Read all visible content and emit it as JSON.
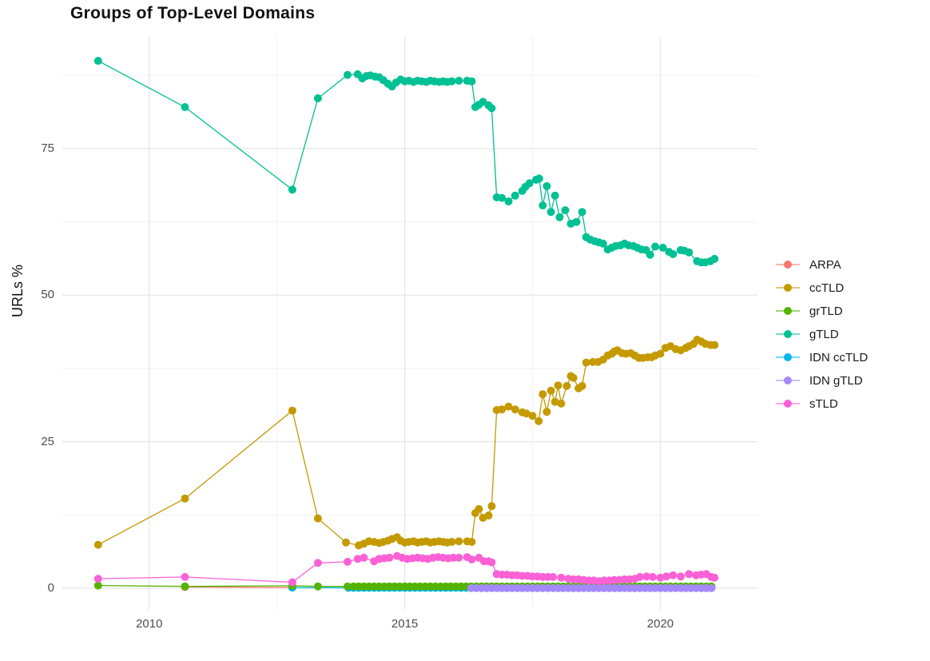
{
  "title": "Groups of Top-Level Domains",
  "y_axis_title": "URLs %",
  "chart_data": {
    "type": "line",
    "marker": "point",
    "xlabel": "",
    "ylabel": "URLs %",
    "xlim": [
      2008.3,
      2021.9
    ],
    "ylim": [
      -3.7,
      94.1
    ],
    "grid": "on",
    "legend_position": "right",
    "x_ticks": [
      {
        "label": "2010",
        "value": 2010
      },
      {
        "label": "2015",
        "value": 2015
      },
      {
        "label": "2020",
        "value": 2020
      }
    ],
    "x_minor": [
      2012.5,
      2017.5
    ],
    "y_ticks": [
      {
        "label": "0",
        "value": 0
      },
      {
        "label": "25",
        "value": 25
      },
      {
        "label": "50",
        "value": 50
      },
      {
        "label": "75",
        "value": 75
      }
    ],
    "y_minor": [
      12.5,
      37.5,
      62.5,
      87.5
    ],
    "series": [
      {
        "name": "ARPA",
        "color": "#F8766D",
        "points": [
          [
            2010.7,
            0.2
          ],
          [
            2012.8,
            0.1
          ]
        ]
      },
      {
        "name": "ccTLD",
        "color": "#C49A00",
        "points": [
          [
            2009.0,
            7.4
          ],
          [
            2010.7,
            15.3
          ],
          [
            2012.8,
            30.3
          ],
          [
            2013.3,
            11.9
          ],
          [
            2013.85,
            7.8
          ],
          [
            2014.1,
            7.3
          ],
          [
            2014.2,
            7.6
          ],
          [
            2014.3,
            8.0
          ],
          [
            2014.4,
            7.9
          ],
          [
            2014.5,
            7.7
          ],
          [
            2014.58,
            7.9
          ],
          [
            2014.67,
            8.1
          ],
          [
            2014.75,
            8.4
          ],
          [
            2014.85,
            8.7
          ],
          [
            2014.92,
            8.1
          ],
          [
            2015.0,
            7.8
          ],
          [
            2015.08,
            7.9
          ],
          [
            2015.17,
            8.0
          ],
          [
            2015.25,
            7.8
          ],
          [
            2015.33,
            7.9
          ],
          [
            2015.42,
            8.0
          ],
          [
            2015.5,
            7.8
          ],
          [
            2015.58,
            7.9
          ],
          [
            2015.67,
            8.0
          ],
          [
            2015.75,
            7.9
          ],
          [
            2015.83,
            7.8
          ],
          [
            2015.92,
            7.9
          ],
          [
            2016.06,
            8.0
          ],
          [
            2016.22,
            8.0
          ],
          [
            2016.31,
            7.9
          ],
          [
            2016.38,
            12.8
          ],
          [
            2016.45,
            13.5
          ],
          [
            2016.53,
            12.0
          ],
          [
            2016.64,
            12.4
          ],
          [
            2016.7,
            14.0
          ],
          [
            2016.8,
            30.4
          ],
          [
            2016.9,
            30.5
          ],
          [
            2017.03,
            31.0
          ],
          [
            2017.16,
            30.5
          ],
          [
            2017.3,
            30.0
          ],
          [
            2017.38,
            29.8
          ],
          [
            2017.5,
            29.4
          ],
          [
            2017.62,
            28.5
          ],
          [
            2017.7,
            33.1
          ],
          [
            2017.78,
            30.1
          ],
          [
            2017.86,
            33.7
          ],
          [
            2017.94,
            31.8
          ],
          [
            2018.0,
            34.6
          ],
          [
            2018.06,
            31.5
          ],
          [
            2018.17,
            34.5
          ],
          [
            2018.25,
            36.2
          ],
          [
            2018.3,
            35.9
          ],
          [
            2018.4,
            34.1
          ],
          [
            2018.47,
            34.5
          ],
          [
            2018.55,
            38.5
          ],
          [
            2018.68,
            38.6
          ],
          [
            2018.78,
            38.6
          ],
          [
            2018.88,
            39.0
          ],
          [
            2018.97,
            39.7
          ],
          [
            2019.05,
            40.0
          ],
          [
            2019.1,
            40.4
          ],
          [
            2019.16,
            40.6
          ],
          [
            2019.25,
            40.1
          ],
          [
            2019.33,
            40.0
          ],
          [
            2019.42,
            40.1
          ],
          [
            2019.5,
            39.7
          ],
          [
            2019.58,
            39.3
          ],
          [
            2019.66,
            39.3
          ],
          [
            2019.75,
            39.4
          ],
          [
            2019.83,
            39.4
          ],
          [
            2019.9,
            39.7
          ],
          [
            2020.0,
            40.0
          ],
          [
            2020.1,
            41.0
          ],
          [
            2020.2,
            41.3
          ],
          [
            2020.3,
            40.8
          ],
          [
            2020.4,
            40.6
          ],
          [
            2020.5,
            41.0
          ],
          [
            2020.56,
            41.3
          ],
          [
            2020.65,
            41.7
          ],
          [
            2020.72,
            42.4
          ],
          [
            2020.8,
            42.1
          ],
          [
            2020.88,
            41.7
          ],
          [
            2020.98,
            41.5
          ],
          [
            2021.06,
            41.5
          ]
        ]
      },
      {
        "name": "grTLD",
        "color": "#53B400",
        "points": [
          [
            2009.0,
            0.45
          ],
          [
            2010.7,
            0.3
          ],
          [
            2012.8,
            0.4
          ],
          [
            2013.3,
            0.3
          ],
          [
            2013.88,
            0.3
          ]
        ],
        "runs": [
          {
            "from": 2014.0,
            "to": 2021.06,
            "step": 0.1,
            "value": 0.3
          }
        ]
      },
      {
        "name": "gTLD",
        "color": "#00C094",
        "points": [
          [
            2009.0,
            90.0
          ],
          [
            2010.7,
            82.1
          ],
          [
            2012.8,
            68.0
          ],
          [
            2013.3,
            83.6
          ],
          [
            2013.88,
            87.6
          ],
          [
            2014.08,
            87.7
          ],
          [
            2014.17,
            87.0
          ],
          [
            2014.25,
            87.4
          ],
          [
            2014.33,
            87.5
          ],
          [
            2014.42,
            87.3
          ],
          [
            2014.5,
            87.2
          ],
          [
            2014.58,
            86.7
          ],
          [
            2014.67,
            86.1
          ],
          [
            2014.75,
            85.6
          ],
          [
            2014.83,
            86.3
          ],
          [
            2014.92,
            86.8
          ],
          [
            2015.0,
            86.5
          ],
          [
            2015.08,
            86.6
          ],
          [
            2015.17,
            86.4
          ],
          [
            2015.25,
            86.6
          ],
          [
            2015.33,
            86.5
          ],
          [
            2015.42,
            86.4
          ],
          [
            2015.5,
            86.6
          ],
          [
            2015.58,
            86.5
          ],
          [
            2015.67,
            86.4
          ],
          [
            2015.75,
            86.5
          ],
          [
            2015.83,
            86.4
          ],
          [
            2015.92,
            86.5
          ],
          [
            2016.06,
            86.6
          ],
          [
            2016.22,
            86.6
          ],
          [
            2016.31,
            86.5
          ],
          [
            2016.38,
            82.1
          ],
          [
            2016.45,
            82.5
          ],
          [
            2016.53,
            83.0
          ],
          [
            2016.64,
            82.4
          ],
          [
            2016.7,
            81.9
          ],
          [
            2016.8,
            66.7
          ],
          [
            2016.9,
            66.6
          ],
          [
            2017.03,
            66.0
          ],
          [
            2017.16,
            67.0
          ],
          [
            2017.3,
            67.8
          ],
          [
            2017.36,
            68.5
          ],
          [
            2017.44,
            69.1
          ],
          [
            2017.57,
            69.7
          ],
          [
            2017.63,
            69.9
          ],
          [
            2017.7,
            65.3
          ],
          [
            2017.78,
            68.6
          ],
          [
            2017.86,
            64.2
          ],
          [
            2017.94,
            67.0
          ],
          [
            2018.03,
            63.3
          ],
          [
            2018.14,
            64.5
          ],
          [
            2018.25,
            62.2
          ],
          [
            2018.36,
            62.5
          ],
          [
            2018.47,
            64.2
          ],
          [
            2018.55,
            59.9
          ],
          [
            2018.63,
            59.5
          ],
          [
            2018.72,
            59.2
          ],
          [
            2018.8,
            59.0
          ],
          [
            2018.88,
            58.8
          ],
          [
            2018.97,
            57.8
          ],
          [
            2019.05,
            58.1
          ],
          [
            2019.13,
            58.4
          ],
          [
            2019.22,
            58.5
          ],
          [
            2019.3,
            58.8
          ],
          [
            2019.38,
            58.5
          ],
          [
            2019.47,
            58.4
          ],
          [
            2019.55,
            58.1
          ],
          [
            2019.63,
            57.8
          ],
          [
            2019.72,
            57.7
          ],
          [
            2019.8,
            56.9
          ],
          [
            2019.9,
            58.3
          ],
          [
            2020.05,
            58.1
          ],
          [
            2020.17,
            57.4
          ],
          [
            2020.25,
            57.0
          ],
          [
            2020.4,
            57.7
          ],
          [
            2020.47,
            57.6
          ],
          [
            2020.56,
            57.3
          ],
          [
            2020.72,
            55.8
          ],
          [
            2020.8,
            55.6
          ],
          [
            2020.88,
            55.6
          ],
          [
            2020.98,
            55.8
          ],
          [
            2021.06,
            56.2
          ]
        ]
      },
      {
        "name": "IDN ccTLD",
        "color": "#00B6EB",
        "points": [
          [
            2012.8,
            0.1
          ]
        ],
        "runs": [
          {
            "from": 2013.9,
            "to": 2021.06,
            "step": 0.1,
            "value": 0.05
          }
        ]
      },
      {
        "name": "IDN gTLD",
        "color": "#A58AFF",
        "runs": [
          {
            "from": 2016.3,
            "to": 2021.06,
            "step": 0.1,
            "value": 0.0
          }
        ]
      },
      {
        "name": "sTLD",
        "color": "#FB61D7",
        "points": [
          [
            2009.0,
            1.6
          ],
          [
            2010.7,
            1.9
          ],
          [
            2012.8,
            1.0
          ],
          [
            2013.3,
            4.3
          ],
          [
            2013.88,
            4.5
          ],
          [
            2014.08,
            5.0
          ],
          [
            2014.2,
            5.2
          ],
          [
            2014.4,
            4.6
          ],
          [
            2014.5,
            5.0
          ],
          [
            2014.6,
            5.1
          ],
          [
            2014.7,
            5.2
          ],
          [
            2014.85,
            5.5
          ],
          [
            2014.95,
            5.2
          ],
          [
            2015.05,
            5.0
          ],
          [
            2015.15,
            5.1
          ],
          [
            2015.25,
            5.2
          ],
          [
            2015.35,
            5.1
          ],
          [
            2015.45,
            5.0
          ],
          [
            2015.55,
            5.2
          ],
          [
            2015.65,
            5.3
          ],
          [
            2015.75,
            5.2
          ],
          [
            2015.85,
            5.1
          ],
          [
            2015.95,
            5.2
          ],
          [
            2016.06,
            5.2
          ],
          [
            2016.22,
            5.3
          ],
          [
            2016.31,
            4.9
          ],
          [
            2016.45,
            5.2
          ],
          [
            2016.55,
            4.6
          ],
          [
            2016.64,
            4.6
          ],
          [
            2016.7,
            4.4
          ],
          [
            2016.8,
            2.4
          ],
          [
            2016.9,
            2.3
          ],
          [
            2017.0,
            2.3
          ],
          [
            2017.1,
            2.2
          ],
          [
            2017.2,
            2.2
          ],
          [
            2017.3,
            2.1
          ],
          [
            2017.4,
            2.1
          ],
          [
            2017.5,
            2.0
          ],
          [
            2017.6,
            2.0
          ],
          [
            2017.7,
            1.9
          ],
          [
            2017.8,
            1.9
          ],
          [
            2017.9,
            1.9
          ],
          [
            2018.06,
            1.8
          ],
          [
            2018.2,
            1.6
          ],
          [
            2018.3,
            1.5
          ],
          [
            2018.4,
            1.5
          ],
          [
            2018.5,
            1.4
          ],
          [
            2018.6,
            1.3
          ],
          [
            2018.7,
            1.3
          ],
          [
            2018.8,
            1.2
          ],
          [
            2018.9,
            1.3
          ],
          [
            2019.0,
            1.3
          ],
          [
            2019.1,
            1.4
          ],
          [
            2019.2,
            1.4
          ],
          [
            2019.3,
            1.5
          ],
          [
            2019.4,
            1.5
          ],
          [
            2019.5,
            1.6
          ],
          [
            2019.6,
            1.9
          ],
          [
            2019.73,
            2.0
          ],
          [
            2019.85,
            1.9
          ],
          [
            2020.0,
            1.8
          ],
          [
            2020.12,
            2.0
          ],
          [
            2020.25,
            2.2
          ],
          [
            2020.4,
            2.0
          ],
          [
            2020.56,
            2.4
          ],
          [
            2020.7,
            2.2
          ],
          [
            2020.8,
            2.3
          ],
          [
            2020.9,
            2.4
          ],
          [
            2021.0,
            1.9
          ],
          [
            2021.06,
            1.8
          ]
        ]
      }
    ]
  },
  "style": {
    "grid_major_color": "#e5e5e5",
    "grid_minor_color": "#f2f2f2",
    "background": "#ffffff"
  }
}
